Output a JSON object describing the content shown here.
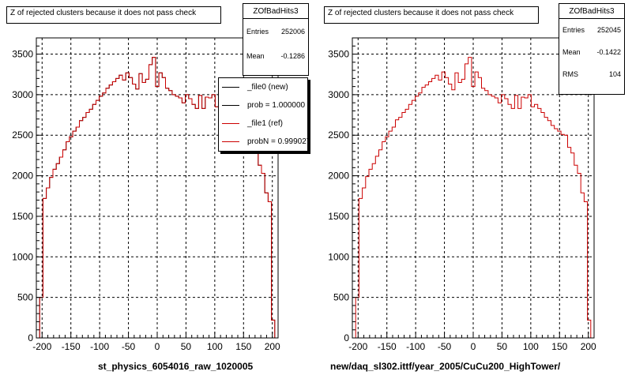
{
  "footnote": "",
  "chart_data": [
    {
      "type": "line",
      "title": "Z of rejected clusters  because it does not pass check",
      "xlabel": "st_physics_6054016_raw_1020005",
      "ylabel": "",
      "xlim": [
        -210,
        210
      ],
      "ylim": [
        0,
        3700
      ],
      "xticks": [
        -200,
        -150,
        -100,
        -50,
        0,
        50,
        100,
        150,
        200
      ],
      "yticks": [
        0,
        500,
        1000,
        1500,
        2000,
        2500,
        3000,
        3500
      ],
      "grid": true,
      "stats": {
        "name": "ZOfBadHits3",
        "entries_label": "Entries",
        "entries": "252006",
        "mean_label": "Mean",
        "mean": "-0.1286"
      },
      "legend": {
        "position": "right",
        "entries": [
          {
            "label": "_file0 (new)",
            "color": "#000000"
          },
          {
            "label": "prob = 1.000000",
            "color": "#000000"
          },
          {
            "label": "_file1 (ref)",
            "color": "#cc0000"
          },
          {
            "label": "probN = 0.999027",
            "color": "#cc0000"
          }
        ]
      },
      "series": [
        {
          "color": "#000000",
          "values": [
            0,
            500,
            1720,
            1850,
            1980,
            2080,
            2150,
            2230,
            2320,
            2420,
            2480,
            2550,
            2600,
            2680,
            2720,
            2780,
            2820,
            2880,
            2930,
            2980,
            3020,
            3080,
            3120,
            3160,
            3200,
            3240,
            3180,
            3270,
            3210,
            3130,
            3070,
            3260,
            3150,
            3190,
            3370,
            3460,
            3100,
            3270,
            3210,
            3080,
            3050,
            3000,
            2980,
            2960,
            2900,
            3000,
            2950,
            2880,
            2830,
            2990,
            2830,
            2970,
            2960,
            3000,
            2850,
            2880,
            2830,
            2780,
            2720,
            2680,
            2620,
            2580,
            2550,
            2510,
            2490,
            2350,
            2280,
            2130,
            2030,
            1790,
            1680,
            220,
            0
          ]
        },
        {
          "color": "#cc0000",
          "values": [
            0,
            500,
            1720,
            1850,
            1980,
            2080,
            2150,
            2230,
            2320,
            2420,
            2480,
            2550,
            2600,
            2680,
            2720,
            2780,
            2820,
            2880,
            2930,
            2980,
            3020,
            3080,
            3120,
            3160,
            3200,
            3240,
            3180,
            3270,
            3210,
            3130,
            3070,
            3260,
            3150,
            3190,
            3370,
            3460,
            3100,
            3270,
            3210,
            3080,
            3050,
            3000,
            2980,
            2960,
            2900,
            3000,
            2950,
            2880,
            2830,
            2990,
            2830,
            2970,
            2960,
            3000,
            2850,
            2880,
            2830,
            2780,
            2720,
            2680,
            2620,
            2580,
            2550,
            2510,
            2490,
            2350,
            2280,
            2130,
            2030,
            1790,
            1680,
            220,
            0
          ]
        }
      ]
    },
    {
      "type": "line",
      "title": "Z of rejected clusters  because it does not pass check",
      "xlabel": "new/daq_sl302.ittf/year_2005/CuCu200_HighTower/",
      "ylabel": "",
      "xlim": [
        -210,
        210
      ],
      "ylim": [
        0,
        3700
      ],
      "xticks": [
        -200,
        -150,
        -100,
        -50,
        0,
        50,
        100,
        150,
        200
      ],
      "yticks": [
        0,
        500,
        1000,
        1500,
        2000,
        2500,
        3000,
        3500
      ],
      "grid": true,
      "stats": {
        "name": "ZOfBadHits3",
        "entries_label": "Entries",
        "entries": "252045",
        "mean_label": "Mean",
        "mean": "-0.1422",
        "rms_label": "RMS",
        "rms": "104"
      },
      "series": [
        {
          "color": "#cc0000",
          "values": [
            0,
            500,
            1720,
            1850,
            1990,
            2080,
            2150,
            2240,
            2320,
            2420,
            2480,
            2550,
            2600,
            2690,
            2720,
            2780,
            2820,
            2880,
            2930,
            2980,
            3020,
            3090,
            3120,
            3160,
            3200,
            3240,
            3180,
            3280,
            3210,
            3130,
            3060,
            3270,
            3150,
            3190,
            3380,
            3460,
            3100,
            3280,
            3210,
            3080,
            3050,
            3000,
            2980,
            2960,
            2900,
            3000,
            2950,
            2880,
            2830,
            2990,
            2830,
            2970,
            2960,
            3000,
            2850,
            2880,
            2830,
            2780,
            2720,
            2680,
            2620,
            2580,
            2550,
            2510,
            2500,
            2350,
            2280,
            2130,
            2030,
            1790,
            1680,
            220,
            0
          ]
        }
      ]
    }
  ]
}
